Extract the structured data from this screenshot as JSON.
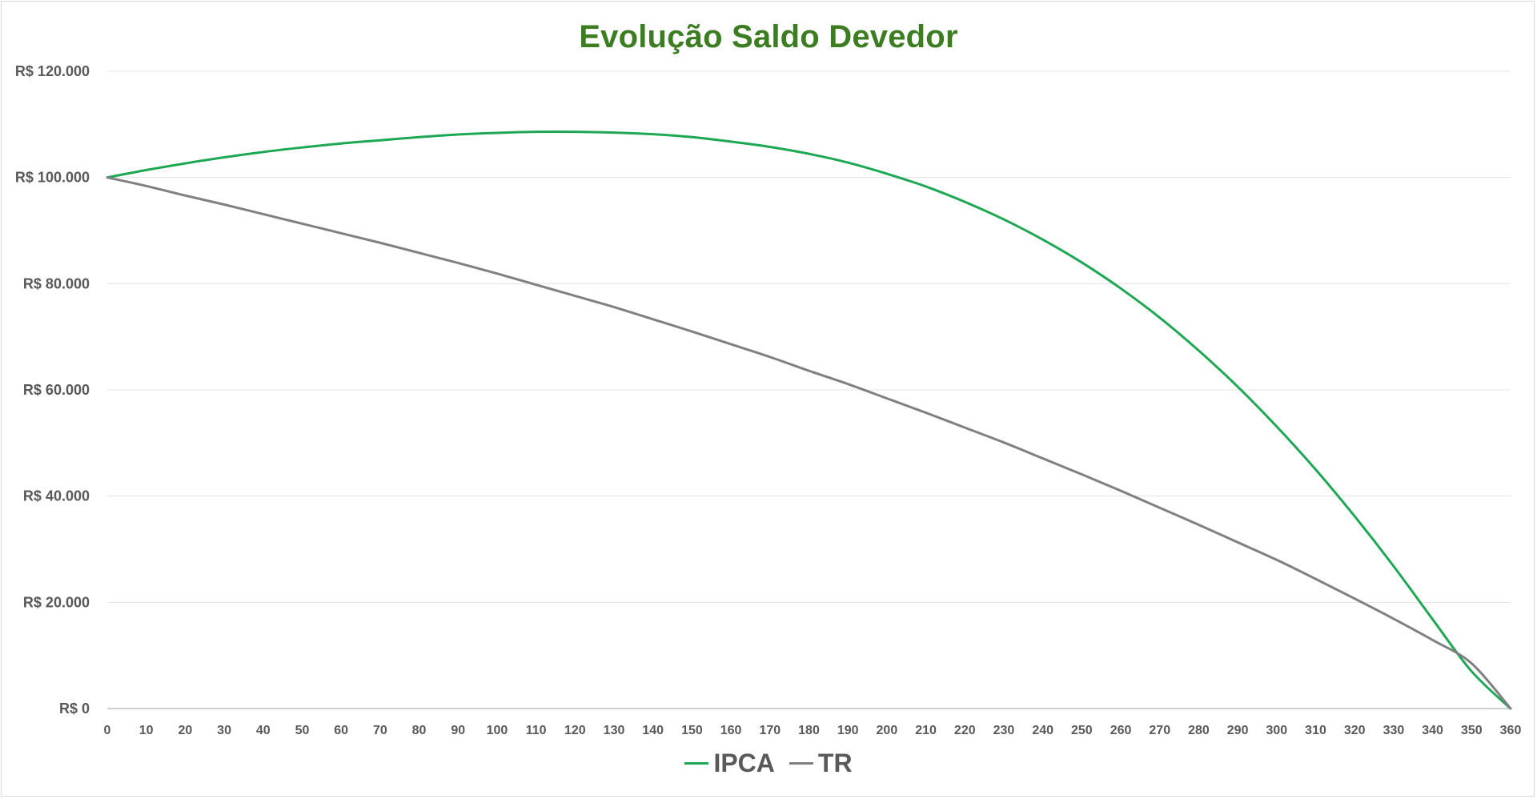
{
  "chart_data": {
    "type": "line",
    "title": "Evolução Saldo Devedor",
    "xlabel": "",
    "ylabel": "",
    "xlim": [
      0,
      360
    ],
    "ylim": [
      0,
      120000
    ],
    "x_ticks": [
      "0",
      "10",
      "20",
      "30",
      "40",
      "50",
      "60",
      "70",
      "80",
      "90",
      "100",
      "110",
      "120",
      "130",
      "140",
      "150",
      "160",
      "170",
      "180",
      "190",
      "200",
      "210",
      "220",
      "230",
      "240",
      "250",
      "260",
      "270",
      "280",
      "290",
      "300",
      "310",
      "320",
      "330",
      "340",
      "350",
      "360"
    ],
    "y_ticks": [
      {
        "value": 0,
        "label": "R$ 0"
      },
      {
        "value": 20000,
        "label": "R$ 20.000"
      },
      {
        "value": 40000,
        "label": "R$ 40.000"
      },
      {
        "value": 60000,
        "label": "R$ 60.000"
      },
      {
        "value": 80000,
        "label": "R$ 80.000"
      },
      {
        "value": 100000,
        "label": "R$ 100.000"
      },
      {
        "value": 120000,
        "label": "R$ 120.000"
      }
    ],
    "grid": "horizontal",
    "legend_position": "bottom",
    "x": [
      0,
      10,
      20,
      30,
      40,
      50,
      60,
      70,
      80,
      90,
      100,
      110,
      120,
      130,
      140,
      150,
      160,
      170,
      180,
      190,
      200,
      210,
      220,
      230,
      240,
      250,
      260,
      270,
      280,
      290,
      300,
      310,
      320,
      330,
      340,
      350,
      360
    ],
    "series": [
      {
        "name": "IPCA",
        "color": "#1ea854",
        "values": [
          100000,
          101400,
          102650,
          103800,
          104800,
          105650,
          106400,
          107000,
          107600,
          108100,
          108400,
          108600,
          108600,
          108450,
          108150,
          107600,
          106750,
          105750,
          104450,
          102800,
          100700,
          98300,
          95400,
          92100,
          88300,
          84000,
          79100,
          73600,
          67400,
          60600,
          53100,
          45000,
          36200,
          26800,
          16800,
          7000,
          0
        ]
      },
      {
        "name": "TR",
        "color": "#808080",
        "values": [
          100000,
          98400,
          96600,
          94900,
          93100,
          91300,
          89500,
          87700,
          85800,
          83900,
          81900,
          79800,
          77700,
          75600,
          73300,
          71000,
          68600,
          66200,
          63600,
          61100,
          58400,
          55700,
          52900,
          50100,
          47100,
          44100,
          41000,
          37800,
          34600,
          31300,
          28000,
          24400,
          20700,
          16900,
          12900,
          8500,
          0
        ]
      }
    ]
  }
}
